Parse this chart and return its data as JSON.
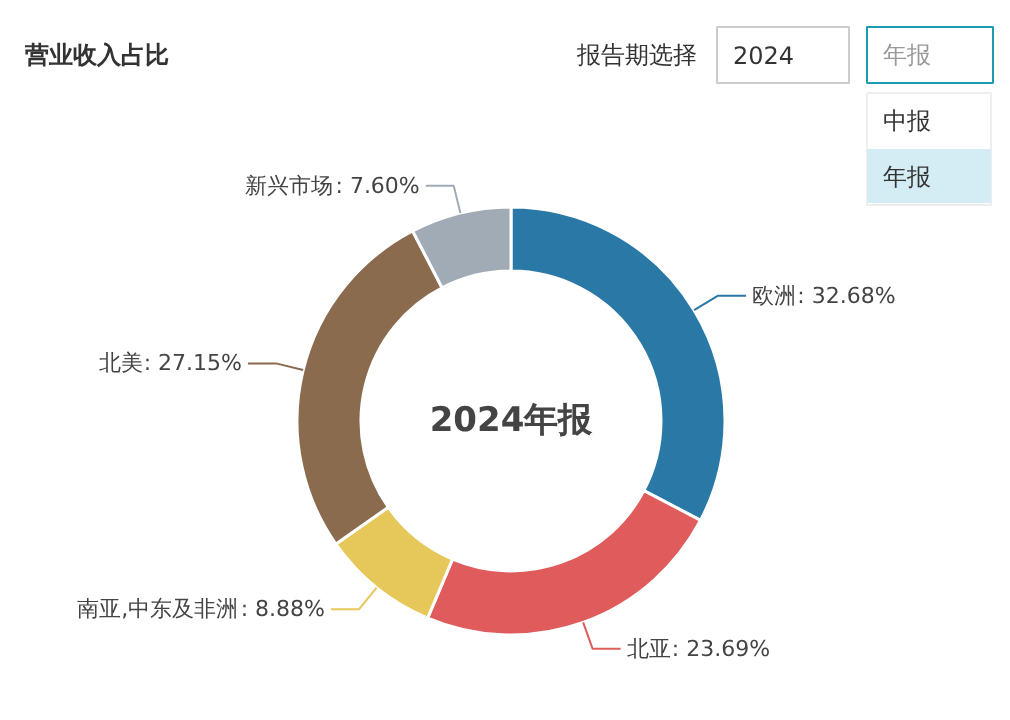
{
  "chart_data": {
    "type": "donut",
    "title": "营业收入占比",
    "categories": [
      "欧洲",
      "北亚",
      "南亚,中东及非洲",
      "北美",
      "新兴市场"
    ],
    "values": [
      32.68,
      23.69,
      8.88,
      27.15,
      7.6
    ],
    "colors": [
      "#2a78a6",
      "#e05c5c",
      "#e6c75a",
      "#8b6b4e",
      "#a0abb5"
    ],
    "value_labels": [
      ": 32.68%",
      ": 23.69%",
      ": 8.88%",
      ": 27.15%",
      ": 7.60%"
    ],
    "annotations": [
      "2024年报",
      "报告期选择",
      "2024",
      "年报",
      "中报",
      "年报"
    ]
  }
}
